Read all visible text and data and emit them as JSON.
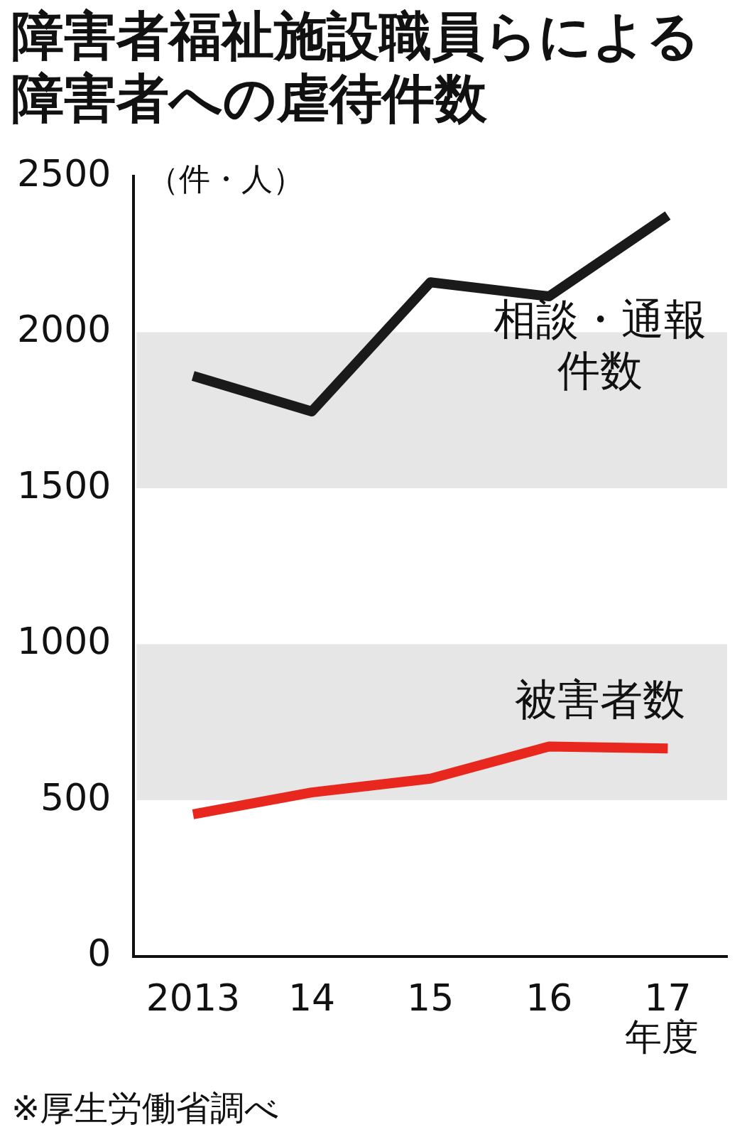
{
  "chart_data": {
    "type": "line",
    "title": "障害者福祉施設職員らによる障害者への虐待件数",
    "ylabel": "（件・人）",
    "xlabel": "年度",
    "categories": [
      "2013",
      "14",
      "15",
      "16",
      "17"
    ],
    "series": [
      {
        "name": "相談・通報件数",
        "color": "#1a1a1a",
        "values": [
          1860,
          1746,
          2160,
          2115,
          2374
        ]
      },
      {
        "name": "被害者数",
        "color": "#e8281e",
        "values": [
          455,
          525,
          569,
          672,
          666
        ]
      }
    ],
    "ylim": [
      0,
      2500
    ],
    "yticks": [
      0,
      500,
      1000,
      1500,
      2000,
      2500
    ],
    "bands": [
      {
        "axis": "y",
        "from": 1500,
        "to": 2000,
        "color": "#e6e6e6"
      },
      {
        "axis": "y",
        "from": 500,
        "to": 1000,
        "color": "#e6e6e6"
      }
    ],
    "grid": false,
    "legend": false,
    "marker": "none",
    "line_style": "solid",
    "annotations": [
      "※厚生労働省調べ"
    ]
  }
}
